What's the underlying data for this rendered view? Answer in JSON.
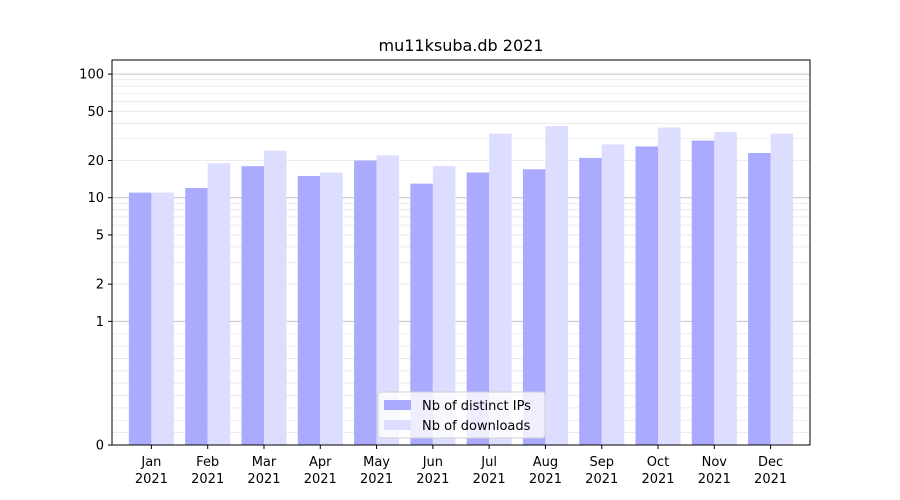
{
  "chart_data": {
    "type": "bar",
    "title": "mu11ksuba.db 2021",
    "categories": [
      [
        "Jan",
        "2021"
      ],
      [
        "Feb",
        "2021"
      ],
      [
        "Mar",
        "2021"
      ],
      [
        "Apr",
        "2021"
      ],
      [
        "May",
        "2021"
      ],
      [
        "Jun",
        "2021"
      ],
      [
        "Jul",
        "2021"
      ],
      [
        "Aug",
        "2021"
      ],
      [
        "Sep",
        "2021"
      ],
      [
        "Oct",
        "2021"
      ],
      [
        "Nov",
        "2021"
      ],
      [
        "Dec",
        "2021"
      ]
    ],
    "series": [
      {
        "name": "Nb of distinct IPs",
        "color": "#aaaaff",
        "values": [
          11,
          12,
          18,
          15,
          20,
          13,
          16,
          17,
          21,
          26,
          29,
          23
        ]
      },
      {
        "name": "Nb of downloads",
        "color": "#ddddff",
        "values": [
          11,
          19,
          24,
          16,
          22,
          18,
          33,
          38,
          27,
          37,
          34,
          33
        ]
      }
    ],
    "y_scale": "symlog",
    "ylim": [
      0,
      130
    ],
    "yticks": [
      0,
      1,
      2,
      5,
      10,
      20,
      50,
      100
    ],
    "grid": true,
    "legend_position": "bottom-center"
  }
}
